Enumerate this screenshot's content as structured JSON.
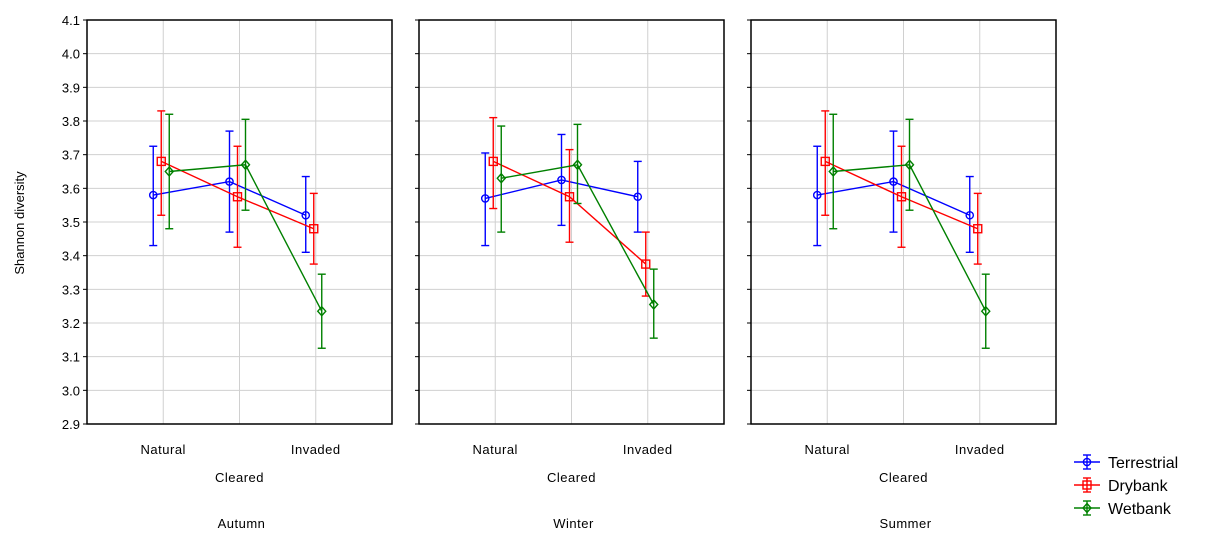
{
  "chart_data": {
    "type": "line",
    "ylabel": "Shannon diversity",
    "ylim": [
      2.9,
      4.1
    ],
    "yticks": [
      "4.1",
      "4.0",
      "3.9",
      "3.8",
      "3.7",
      "3.6",
      "3.5",
      "3.4",
      "3.3",
      "3.2",
      "3.1",
      "3.0",
      "2.9"
    ],
    "categories": [
      "Natural",
      "Cleared",
      "Invaded"
    ],
    "grid": true,
    "legend_position": "bottom-right",
    "panels": [
      {
        "title": "Autumn",
        "series": [
          {
            "name": "Terrestrial",
            "color": "#0000ff",
            "marker": "circle",
            "values": [
              3.58,
              3.62,
              3.52
            ],
            "lower": [
              3.43,
              3.47,
              3.41
            ],
            "upper": [
              3.725,
              3.77,
              3.635
            ]
          },
          {
            "name": "Drybank",
            "color": "#ff0000",
            "marker": "square",
            "values": [
              3.68,
              3.575,
              3.48
            ],
            "lower": [
              3.52,
              3.425,
              3.375
            ],
            "upper": [
              3.83,
              3.725,
              3.585
            ]
          },
          {
            "name": "Wetbank",
            "color": "#008000",
            "marker": "diamond",
            "values": [
              3.65,
              3.67,
              3.235
            ],
            "lower": [
              3.48,
              3.535,
              3.125
            ],
            "upper": [
              3.82,
              3.805,
              3.345
            ]
          }
        ]
      },
      {
        "title": "Winter",
        "series": [
          {
            "name": "Terrestrial",
            "color": "#0000ff",
            "marker": "circle",
            "values": [
              3.57,
              3.625,
              3.575
            ],
            "lower": [
              3.43,
              3.49,
              3.47
            ],
            "upper": [
              3.705,
              3.76,
              3.68
            ]
          },
          {
            "name": "Drybank",
            "color": "#ff0000",
            "marker": "square",
            "values": [
              3.68,
              3.575,
              3.375
            ],
            "lower": [
              3.54,
              3.44,
              3.28
            ],
            "upper": [
              3.81,
              3.715,
              3.47
            ]
          },
          {
            "name": "Wetbank",
            "color": "#008000",
            "marker": "diamond",
            "values": [
              3.63,
              3.67,
              3.255
            ],
            "lower": [
              3.47,
              3.555,
              3.155
            ],
            "upper": [
              3.785,
              3.79,
              3.36
            ]
          }
        ]
      },
      {
        "title": "Summer",
        "series": [
          {
            "name": "Terrestrial",
            "color": "#0000ff",
            "marker": "circle",
            "values": [
              3.58,
              3.62,
              3.52
            ],
            "lower": [
              3.43,
              3.47,
              3.41
            ],
            "upper": [
              3.725,
              3.77,
              3.635
            ]
          },
          {
            "name": "Drybank",
            "color": "#ff0000",
            "marker": "square",
            "values": [
              3.68,
              3.575,
              3.48
            ],
            "lower": [
              3.52,
              3.425,
              3.375
            ],
            "upper": [
              3.83,
              3.725,
              3.585
            ]
          },
          {
            "name": "Wetbank",
            "color": "#008000",
            "marker": "diamond",
            "values": [
              3.65,
              3.67,
              3.235
            ],
            "lower": [
              3.48,
              3.535,
              3.125
            ],
            "upper": [
              3.82,
              3.805,
              3.345
            ]
          }
        ]
      }
    ],
    "legend": [
      {
        "label": "Terrestrial",
        "color": "#0000ff",
        "marker": "circle"
      },
      {
        "label": "Drybank",
        "color": "#ff0000",
        "marker": "square"
      },
      {
        "label": "Wetbank",
        "color": "#008000",
        "marker": "diamond"
      }
    ]
  }
}
